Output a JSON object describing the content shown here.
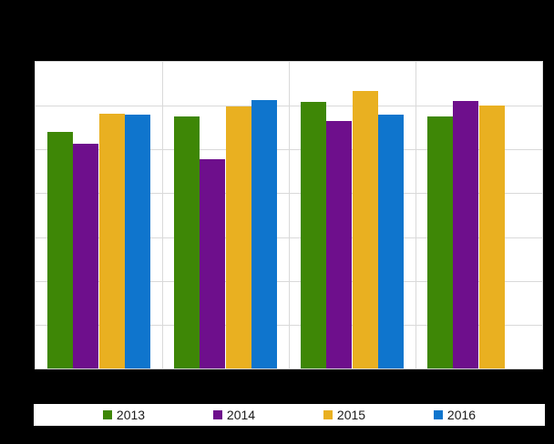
{
  "page": {
    "background_color": "#000000",
    "plot_background_color": "#ffffff",
    "gridline_color": "#d9d9d9",
    "legend_background_color": "#ffffff",
    "legend_text_color": "#1a1a1a"
  },
  "chart_data": {
    "type": "bar",
    "categories": [
      "",
      "",
      "",
      ""
    ],
    "category_labels_visible": false,
    "axis_tick_labels_visible": false,
    "title_visible": false,
    "series": [
      {
        "name": "2013",
        "color": "#3e8706",
        "values": [
          5.4,
          5.76,
          6.09,
          5.75
        ]
      },
      {
        "name": "2014",
        "color": "#6e0f8c",
        "values": [
          5.13,
          4.77,
          5.66,
          6.11
        ]
      },
      {
        "name": "2015",
        "color": "#e9b021",
        "values": [
          5.82,
          5.99,
          6.33,
          6.01
        ]
      },
      {
        "name": "2016",
        "color": "#0f75cd",
        "values": [
          5.8,
          6.12,
          5.79,
          null
        ]
      }
    ],
    "ylim": [
      0,
      7
    ],
    "y_gridline_intervals": 7,
    "x_gridline_intervals": 4,
    "grid": true,
    "legend_position": "bottom"
  }
}
